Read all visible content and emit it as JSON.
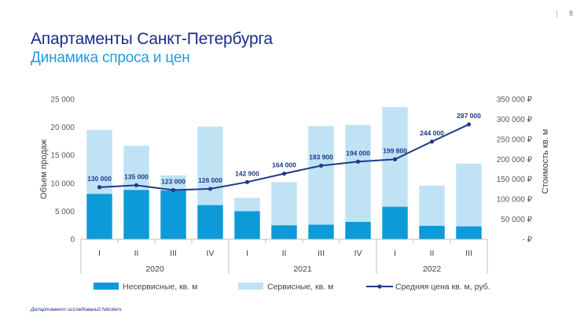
{
  "page": {
    "number": "8",
    "separator": "|"
  },
  "title": "Апартаменты Санкт-Петербурга",
  "subtitle": "Динамика спроса и цен",
  "footer": "Департамент исследований Nikoliers",
  "colors": {
    "non_service": "#0d9ad8",
    "service": "#bfe3f5",
    "price_line": "#1f3a8a",
    "title": "#1a2b8c",
    "subtitle": "#1e9be0"
  },
  "chart_data": {
    "type": "bar",
    "stacked": true,
    "categories": [
      "I",
      "II",
      "III",
      "IV",
      "I",
      "II",
      "III",
      "IV",
      "I",
      "II",
      "III"
    ],
    "groups": [
      {
        "label": "2020",
        "count": 4
      },
      {
        "label": "2021",
        "count": 4
      },
      {
        "label": "2022",
        "count": 3
      }
    ],
    "series": [
      {
        "name": "Несервисные, кв. м",
        "kind": "bar",
        "axis": "left",
        "values": [
          8100,
          8800,
          8700,
          6100,
          5000,
          2500,
          2600,
          3100,
          5800,
          2400,
          2300
        ]
      },
      {
        "name": "Сервисные, кв. м",
        "kind": "bar",
        "axis": "left",
        "values": [
          11400,
          7900,
          2700,
          14000,
          2400,
          7700,
          17600,
          17300,
          17800,
          7200,
          11200
        ]
      },
      {
        "name": "Средняя цена кв. м, руб.",
        "kind": "line",
        "axis": "right",
        "values": [
          130000,
          135000,
          123000,
          126000,
          142900,
          164000,
          183900,
          194000,
          199800,
          244000,
          287000
        ],
        "labels": [
          "130 000",
          "135 000",
          "123 000",
          "126 000",
          "142 900",
          "164 000",
          "183 900",
          "194 000",
          "199 800",
          "244 000",
          "287 000"
        ]
      }
    ],
    "ylabel": "Объем продаж",
    "ylim": [
      0,
      25000
    ],
    "yticks": [
      0,
      5000,
      10000,
      15000,
      20000,
      25000
    ],
    "ytick_labels": [
      "0",
      "5 000",
      "10 000",
      "15 000",
      "20 000",
      "25 000"
    ],
    "y2label": "Стоимость кв. м",
    "y2lim": [
      0,
      350000
    ],
    "y2ticks": [
      0,
      50000,
      100000,
      150000,
      200000,
      250000,
      300000,
      350000
    ],
    "y2tick_labels": [
      "- ₽",
      "50 000 ₽",
      "100 000 ₽",
      "150 000 ₽",
      "200 000 ₽",
      "250 000 ₽",
      "300 000 ₽",
      "350 000 ₽"
    ],
    "grid": false,
    "legend": "bottom"
  }
}
